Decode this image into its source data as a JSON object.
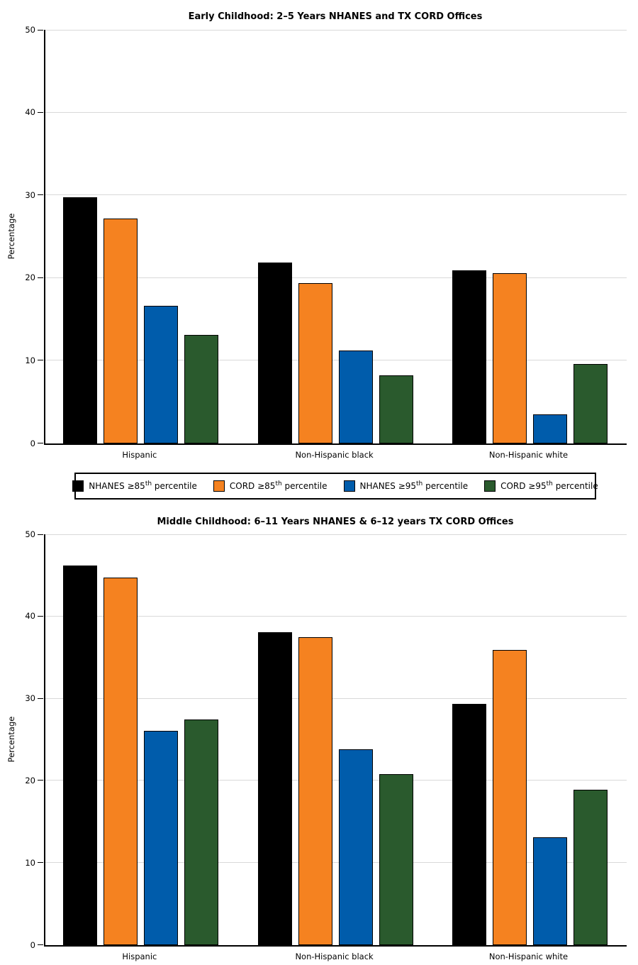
{
  "accent_colors": {
    "nhanes_85": "#000000",
    "cord_85": "#F58220",
    "nhanes_95": "#005CAB",
    "cord_95": "#2A5A2D",
    "gridline": "#d9d9d9",
    "axis": "#000000"
  },
  "legend": {
    "items": [
      {
        "pre": "NHANES ≥85",
        "sup": "th",
        "post": " percentile",
        "color": "#000000"
      },
      {
        "pre": "CORD ≥85",
        "sup": "th",
        "post": " percentile",
        "color": "#F58220"
      },
      {
        "pre": "NHANES ≥95",
        "sup": "th",
        "post": " percentile",
        "color": "#005CAB"
      },
      {
        "pre": "CORD ≥95",
        "sup": "th",
        "post": " percentile",
        "color": "#2A5A2D"
      }
    ]
  },
  "chart_data": [
    {
      "type": "bar",
      "title": "Early Childhood: 2–5 Years NHANES and TX CORD Offices",
      "xlabel": "",
      "ylabel": "Percentage",
      "ylim": [
        0,
        50
      ],
      "yticks": [
        0,
        10,
        20,
        30,
        40,
        50
      ],
      "grid": "horizontal",
      "categories": [
        "Hispanic",
        "Non-Hispanic black",
        "Non-Hispanic white"
      ],
      "series": [
        {
          "name": "NHANES ≥85th percentile",
          "color": "#000000",
          "values": [
            29.8,
            21.9,
            20.9
          ]
        },
        {
          "name": "CORD ≥85th percentile",
          "color": "#F58220",
          "values": [
            27.2,
            19.4,
            20.6
          ]
        },
        {
          "name": "NHANES ≥95th percentile",
          "color": "#005CAB",
          "values": [
            16.6,
            11.2,
            3.5
          ]
        },
        {
          "name": "CORD ≥95th percentile",
          "color": "#2A5A2D",
          "values": [
            13.1,
            8.2,
            9.6
          ]
        }
      ]
    },
    {
      "type": "bar",
      "title": "Middle Childhood: 6–11 Years NHANES & 6–12 years TX CORD Offices",
      "xlabel": "",
      "ylabel": "Percentage",
      "ylim": [
        0,
        50
      ],
      "yticks": [
        0,
        10,
        20,
        30,
        40,
        50
      ],
      "grid": "horizontal",
      "categories": [
        "Hispanic",
        "Non-Hispanic black",
        "Non-Hispanic white"
      ],
      "series": [
        {
          "name": "NHANES ≥85th percentile",
          "color": "#000000",
          "values": [
            46.2,
            38.1,
            29.4
          ]
        },
        {
          "name": "CORD ≥85th percentile",
          "color": "#F58220",
          "values": [
            44.7,
            37.5,
            35.9
          ]
        },
        {
          "name": "NHANES ≥95th percentile",
          "color": "#005CAB",
          "values": [
            26.1,
            23.8,
            13.1
          ]
        },
        {
          "name": "CORD ≥95th percentile",
          "color": "#2A5A2D",
          "values": [
            27.5,
            20.8,
            18.9
          ]
        }
      ]
    }
  ]
}
